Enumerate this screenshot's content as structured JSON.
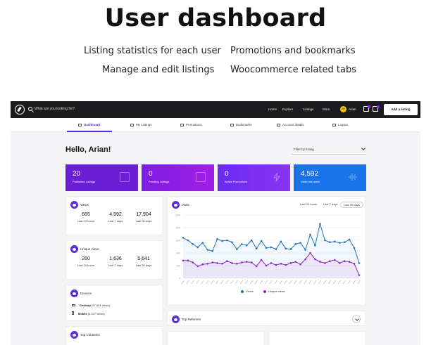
{
  "hero": {
    "title": "User dashboard",
    "features": [
      "Listing statistics for each user",
      "Promotions and bookmarks",
      "Manage and edit listings",
      "Woocommerce related tabs"
    ]
  },
  "topbar": {
    "search_placeholder": "What are you looking for?",
    "nav": [
      "Home",
      "Explore",
      "Listings",
      "More"
    ],
    "avatar_initials": "AR",
    "user_name": "Arian",
    "add_listing_label": "Add a listing"
  },
  "tabs": [
    "Dashboard",
    "My Listings",
    "Promotions",
    "Bookmarks",
    "Account details",
    "Logout"
  ],
  "greeting": "Hello, Arian!",
  "filter_label": "Filter by listing",
  "stats": [
    {
      "value": "20",
      "label": "Published Listings",
      "color": "#6a1fd6"
    },
    {
      "value": "0",
      "label": "Pending Listings",
      "color": "#8a1ee6"
    },
    {
      "value": "0",
      "label": "Active Promotions",
      "color": "#7b2ff7"
    },
    {
      "value": "4,592",
      "label": "Visits this week",
      "color": "#1a73e8"
    }
  ],
  "views_card": {
    "title": "Views",
    "cols": [
      {
        "value": "665",
        "period": "Last 24 hours"
      },
      {
        "value": "4,592",
        "period": "Last 7 days"
      },
      {
        "value": "17,904",
        "period": "Last 30 days"
      }
    ]
  },
  "unique_card": {
    "title": "Unique views",
    "cols": [
      {
        "value": "260",
        "period": "Last 24 hours"
      },
      {
        "value": "1,636",
        "period": "Last 7 days"
      },
      {
        "value": "5,641",
        "period": "Last 30 days"
      }
    ]
  },
  "devices_card": {
    "title": "Devices",
    "rows": [
      {
        "name": "Desktop",
        "count": "(27,454 views)"
      },
      {
        "name": "Mobile",
        "count": "(6,537 views)"
      }
    ]
  },
  "countries_card": {
    "title": "Top Countries"
  },
  "visits_card": {
    "title": "Visits",
    "periods": [
      "Last 24 hours",
      "Last 7 days",
      "Last 30 days"
    ],
    "selected_period": "Last 30 days",
    "legend": [
      {
        "name": "Views",
        "color": "#1e73be"
      },
      {
        "name": "Unique views",
        "color": "#8e24c9"
      }
    ]
  },
  "referrers_card": {
    "title": "Top Referrers"
  },
  "chart_data": {
    "type": "line",
    "title": "Visits",
    "xlabel": "",
    "ylabel": "",
    "ylim": [
      0,
      1000
    ],
    "yticks": [
      0,
      200,
      400,
      600,
      800,
      1000
    ],
    "series": [
      {
        "name": "Views",
        "color": "#1e73be",
        "values": [
          640,
          600,
          540,
          490,
          560,
          450,
          430,
          620,
          590,
          600,
          570,
          460,
          540,
          520,
          600,
          470,
          590,
          480,
          490,
          460,
          580,
          470,
          460,
          540,
          560,
          450,
          690,
          520,
          860,
          600,
          570,
          580,
          560,
          570,
          610,
          480,
          240
        ]
      },
      {
        "name": "Unique views",
        "color": "#8e24c9",
        "values": [
          280,
          280,
          250,
          190,
          220,
          230,
          250,
          240,
          230,
          270,
          240,
          230,
          250,
          260,
          250,
          190,
          290,
          200,
          240,
          210,
          230,
          210,
          240,
          260,
          220,
          300,
          400,
          300,
          260,
          240,
          270,
          290,
          240,
          270,
          260,
          230,
          50
        ]
      }
    ]
  }
}
